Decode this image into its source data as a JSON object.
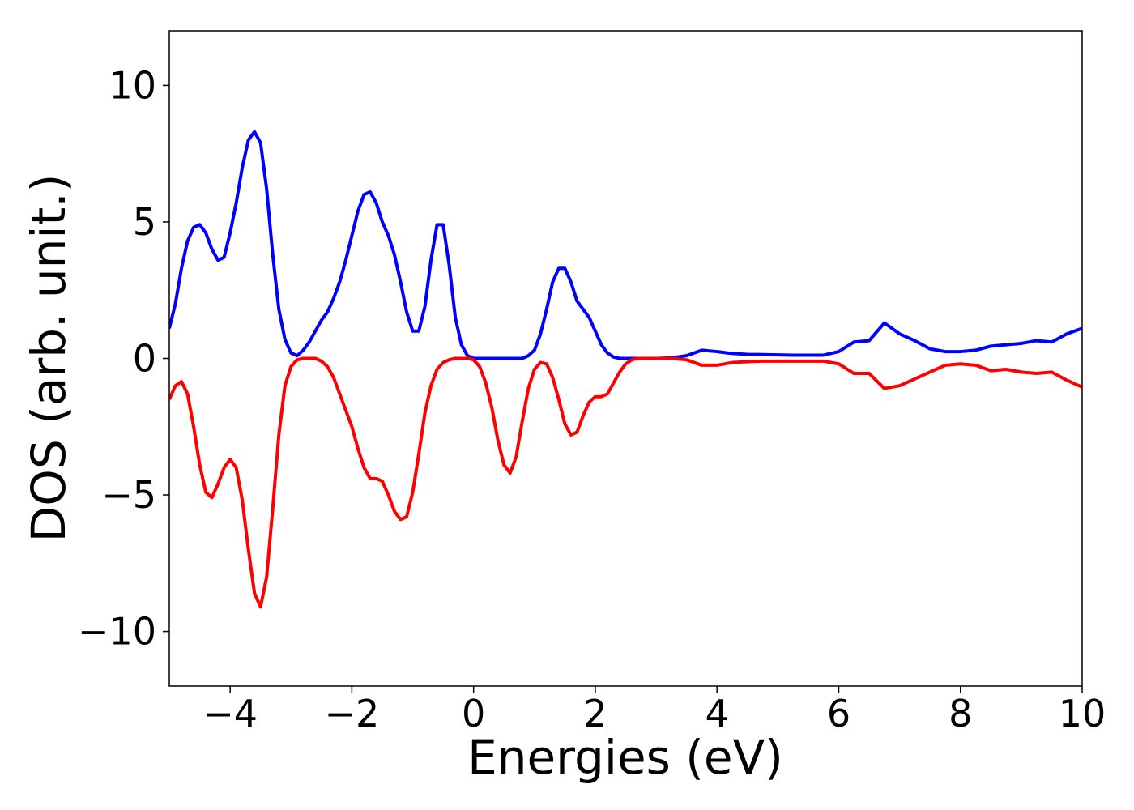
{
  "chart_data": {
    "type": "line",
    "xlabel": "Energies (eV)",
    "ylabel": "DOS (arb. unit.)",
    "x": [
      -5.0,
      -4.9,
      -4.8,
      -4.7,
      -4.6,
      -4.5,
      -4.4,
      -4.3,
      -4.2,
      -4.1,
      -4.0,
      -3.9,
      -3.8,
      -3.7,
      -3.6,
      -3.5,
      -3.4,
      -3.3,
      -3.2,
      -3.1,
      -3.0,
      -2.9,
      -2.8,
      -2.7,
      -2.6,
      -2.5,
      -2.4,
      -2.3,
      -2.2,
      -2.1,
      -2.0,
      -1.9,
      -1.8,
      -1.7,
      -1.6,
      -1.5,
      -1.4,
      -1.3,
      -1.2,
      -1.1,
      -1.0,
      -0.9,
      -0.8,
      -0.7,
      -0.6,
      -0.5,
      -0.4,
      -0.3,
      -0.2,
      -0.1,
      0.0,
      0.1,
      0.2,
      0.3,
      0.4,
      0.5,
      0.6,
      0.7,
      0.8,
      0.9,
      1.0,
      1.1,
      1.2,
      1.3,
      1.4,
      1.5,
      1.6,
      1.7,
      1.8,
      1.9,
      2.0,
      2.1,
      2.2,
      2.3,
      2.4,
      2.5,
      2.6,
      2.7,
      2.8,
      2.9,
      3.0,
      3.25,
      3.5,
      3.75,
      4.0,
      4.25,
      4.5,
      4.75,
      5.0,
      5.25,
      5.5,
      5.75,
      6.0,
      6.25,
      6.5,
      6.75,
      7.0,
      7.25,
      7.5,
      7.75,
      8.0,
      8.25,
      8.5,
      8.75,
      9.0,
      9.25,
      9.5,
      9.75,
      10.0
    ],
    "series": [
      {
        "color": "#0000ff",
        "values": [
          1.1,
          2.0,
          3.3,
          4.3,
          4.8,
          4.9,
          4.6,
          4.0,
          3.6,
          3.7,
          4.6,
          5.7,
          7.0,
          8.0,
          8.3,
          7.9,
          6.2,
          3.8,
          1.8,
          0.7,
          0.2,
          0.1,
          0.3,
          0.6,
          1.0,
          1.4,
          1.7,
          2.2,
          2.8,
          3.6,
          4.5,
          5.4,
          6.0,
          6.1,
          5.7,
          5.0,
          4.5,
          3.8,
          2.8,
          1.7,
          1.0,
          1.0,
          1.9,
          3.6,
          4.9,
          4.9,
          3.4,
          1.5,
          0.5,
          0.1,
          0,
          0,
          0,
          0,
          0,
          0,
          0,
          0,
          0,
          0.1,
          0.3,
          0.9,
          1.8,
          2.8,
          3.3,
          3.3,
          2.8,
          2.1,
          1.8,
          1.5,
          1.0,
          0.5,
          0.2,
          0.05,
          0,
          0,
          0,
          0,
          0,
          0,
          0,
          0.02,
          0.1,
          0.3,
          0.25,
          0.18,
          0.15,
          0.14,
          0.13,
          0.12,
          0.12,
          0.12,
          0.25,
          0.6,
          0.65,
          1.3,
          0.9,
          0.65,
          0.35,
          0.25,
          0.25,
          0.3,
          0.45,
          0.5,
          0.55,
          0.65,
          0.6,
          0.9,
          1.1
        ]
      },
      {
        "color": "#ff0000",
        "values": [
          -1.5,
          -1.0,
          -0.85,
          -1.3,
          -2.5,
          -3.9,
          -4.9,
          -5.1,
          -4.6,
          -4.0,
          -3.7,
          -4.0,
          -5.2,
          -7.0,
          -8.6,
          -9.1,
          -8.0,
          -5.5,
          -2.8,
          -1.0,
          -0.3,
          -0.05,
          0,
          0,
          0,
          -0.1,
          -0.3,
          -0.7,
          -1.3,
          -1.9,
          -2.5,
          -3.3,
          -4.0,
          -4.4,
          -4.4,
          -4.5,
          -5.0,
          -5.6,
          -5.9,
          -5.8,
          -4.9,
          -3.5,
          -2.0,
          -1.0,
          -0.4,
          -0.15,
          -0.05,
          0,
          0,
          0,
          -0.05,
          -0.3,
          -0.9,
          -1.8,
          -3.0,
          -3.9,
          -4.2,
          -3.6,
          -2.3,
          -1.1,
          -0.4,
          -0.15,
          -0.2,
          -0.7,
          -1.5,
          -2.4,
          -2.8,
          -2.7,
          -2.1,
          -1.6,
          -1.4,
          -1.4,
          -1.3,
          -0.9,
          -0.5,
          -0.2,
          -0.05,
          0,
          0,
          0,
          0,
          0,
          -0.05,
          -0.25,
          -0.25,
          -0.15,
          -0.12,
          -0.1,
          -0.1,
          -0.1,
          -0.1,
          -0.1,
          -0.2,
          -0.55,
          -0.55,
          -1.1,
          -1.0,
          -0.75,
          -0.5,
          -0.25,
          -0.2,
          -0.25,
          -0.45,
          -0.4,
          -0.5,
          -0.55,
          -0.5,
          -0.8,
          -1.05
        ]
      }
    ],
    "xlim": [
      -5,
      10
    ],
    "ylim": [
      -12,
      12
    ],
    "xticks": [
      {
        "value": -4,
        "label": "−4"
      },
      {
        "value": -2,
        "label": "−2"
      },
      0,
      2,
      4,
      6,
      8,
      10
    ],
    "yticks": [
      {
        "value": -10,
        "label": "−10"
      },
      {
        "value": -5,
        "label": "−5"
      },
      0,
      5,
      10
    ],
    "grid": false
  }
}
